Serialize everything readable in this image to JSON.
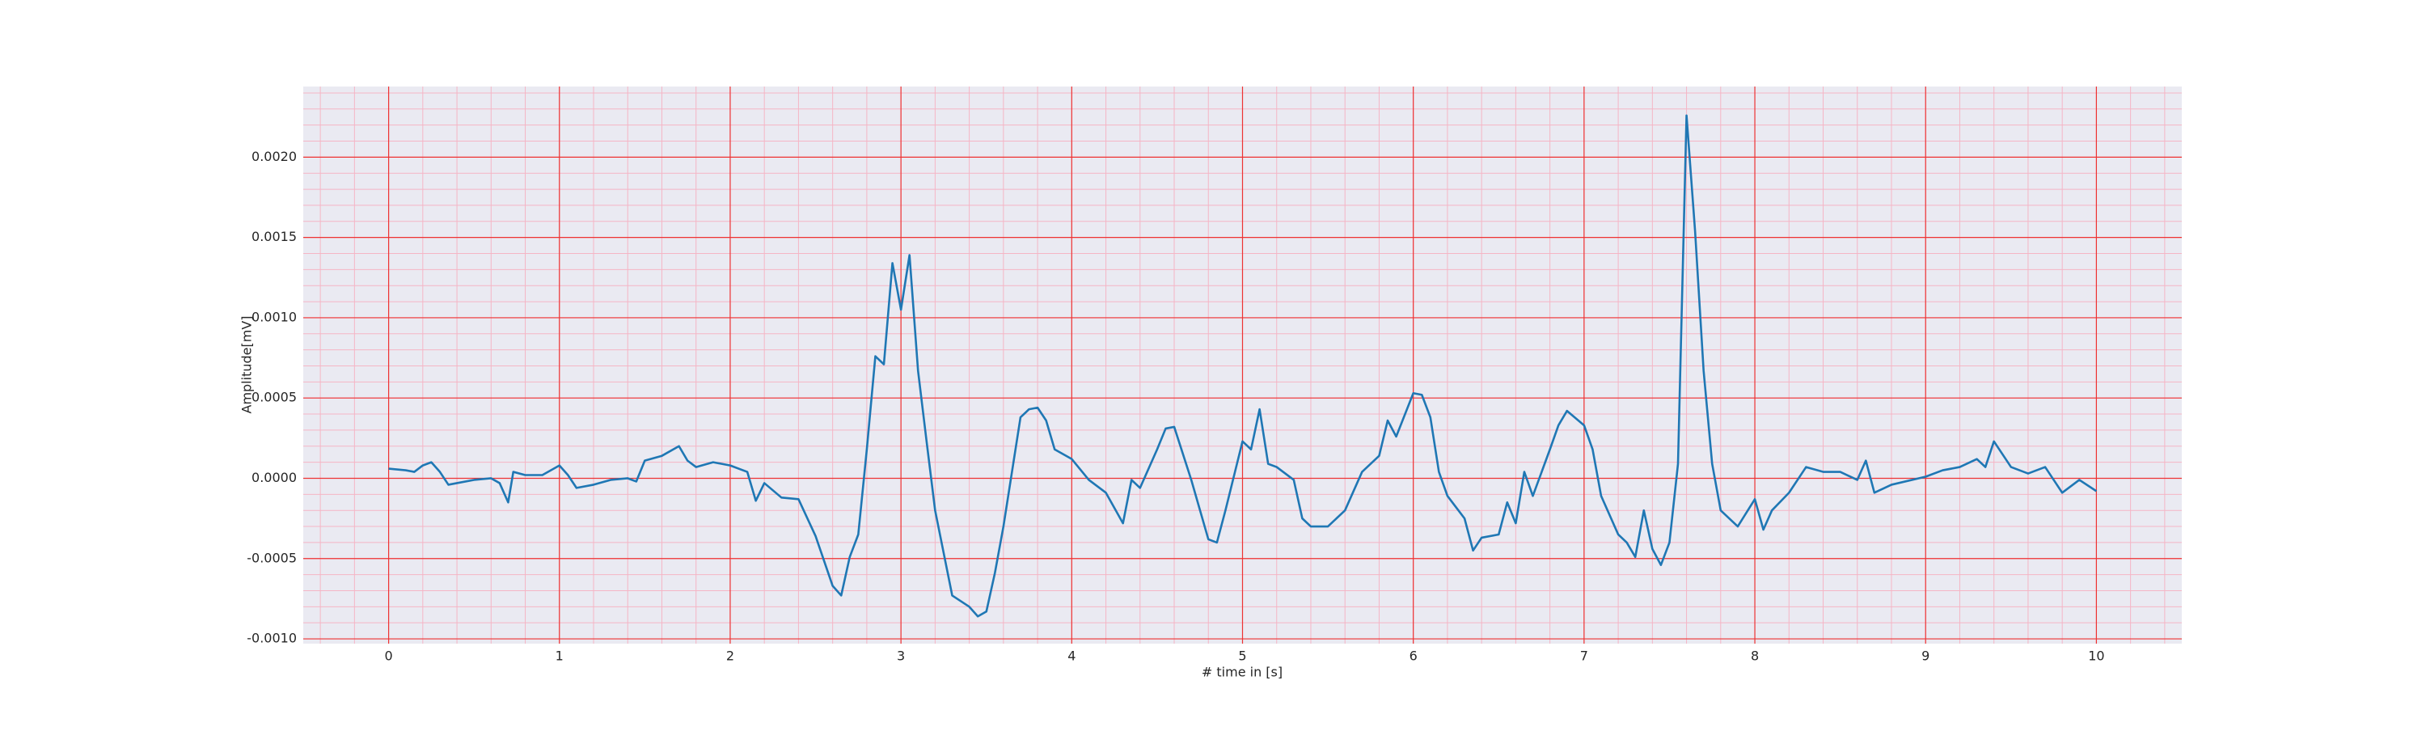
{
  "chart_data": {
    "type": "line",
    "xlabel": "# time in [s]",
    "ylabel": "Amplitude[mV]",
    "color": "#1f77b4",
    "background": "#eaeaf2",
    "grid": true,
    "grid_color": "#ee3333",
    "minor_grid": {
      "x_step": 0.2,
      "y_step": 0.0001,
      "color": "#f5b5c5"
    },
    "xlim": [
      -0.5,
      10.5
    ],
    "ylim": [
      -0.00103,
      0.00244
    ],
    "xticks": [
      0,
      1,
      2,
      3,
      4,
      5,
      6,
      7,
      8,
      9,
      10
    ],
    "yticks": [
      {
        "value": -0.001,
        "label": "-0.0010"
      },
      {
        "value": -0.0005,
        "label": "-0.0005"
      },
      {
        "value": 0,
        "label": "0.0000"
      },
      {
        "value": 0.0005,
        "label": "0.0005"
      },
      {
        "value": 0.001,
        "label": "0.0010"
      },
      {
        "value": 0.0015,
        "label": "0.0015"
      },
      {
        "value": 0.002,
        "label": "0.0020"
      }
    ],
    "x": [
      0,
      0.1,
      0.15,
      0.2,
      0.25,
      0.3,
      0.35,
      0.4,
      0.5,
      0.6,
      0.65,
      0.7,
      0.73,
      0.8,
      0.9,
      1.0,
      1.05,
      1.1,
      1.2,
      1.3,
      1.4,
      1.45,
      1.5,
      1.6,
      1.7,
      1.75,
      1.8,
      1.9,
      2.0,
      2.1,
      2.15,
      2.2,
      2.3,
      2.4,
      2.5,
      2.6,
      2.65,
      2.7,
      2.75,
      2.8,
      2.85,
      2.9,
      2.95,
      3.0,
      3.05,
      3.1,
      3.15,
      3.2,
      3.3,
      3.4,
      3.45,
      3.5,
      3.55,
      3.6,
      3.7,
      3.75,
      3.8,
      3.85,
      3.9,
      4.0,
      4.1,
      4.2,
      4.3,
      4.35,
      4.4,
      4.5,
      4.55,
      4.6,
      4.7,
      4.8,
      4.85,
      4.9,
      5.0,
      5.05,
      5.1,
      5.15,
      5.2,
      5.3,
      5.35,
      5.4,
      5.5,
      5.6,
      5.7,
      5.8,
      5.85,
      5.9,
      6.0,
      6.05,
      6.1,
      6.15,
      6.2,
      6.3,
      6.35,
      6.4,
      6.5,
      6.55,
      6.6,
      6.65,
      6.7,
      6.8,
      6.85,
      6.9,
      7.0,
      7.05,
      7.1,
      7.2,
      7.25,
      7.3,
      7.35,
      7.4,
      7.45,
      7.5,
      7.55,
      7.6,
      7.65,
      7.7,
      7.75,
      7.8,
      7.9,
      8.0,
      8.05,
      8.1,
      8.2,
      8.3,
      8.4,
      8.5,
      8.6,
      8.65,
      8.7,
      8.8,
      9.0,
      9.1,
      9.2,
      9.3,
      9.35,
      9.4,
      9.5,
      9.6,
      9.7,
      9.8,
      9.9,
      10.0
    ],
    "values": [
      6e-05,
      5e-05,
      4e-05,
      8e-05,
      0.0001,
      4e-05,
      -4e-05,
      -3e-05,
      -1e-05,
      0,
      -3e-05,
      -0.00015,
      4e-05,
      2e-05,
      2e-05,
      8e-05,
      2e-05,
      -6e-05,
      -4e-05,
      -1e-05,
      0,
      -2e-05,
      0.00011,
      0.00014,
      0.0002,
      0.00011,
      7e-05,
      0.0001,
      8e-05,
      4e-05,
      -0.00014,
      -3e-05,
      -0.00012,
      -0.00013,
      -0.00036,
      -0.00067,
      -0.00073,
      -0.00049,
      -0.00035,
      0.00018,
      0.00076,
      0.00071,
      0.00134,
      0.00105,
      0.00139,
      0.00067,
      0.00023,
      -0.0002,
      -0.00073,
      -0.0008,
      -0.00086,
      -0.00083,
      -0.00059,
      -0.0003,
      0.00038,
      0.00043,
      0.00044,
      0.00036,
      0.00018,
      0.00012,
      -1e-05,
      -9e-05,
      -0.00028,
      -1e-05,
      -6e-05,
      0.00018,
      0.00031,
      0.00032,
      -1e-05,
      -0.00038,
      -0.0004,
      -0.0002,
      0.00023,
      0.00018,
      0.00043,
      9e-05,
      7e-05,
      -1e-05,
      -0.00025,
      -0.0003,
      -0.0003,
      -0.0002,
      4e-05,
      0.00014,
      0.00036,
      0.00026,
      0.00053,
      0.00052,
      0.00038,
      4e-05,
      -0.00011,
      -0.00025,
      -0.00045,
      -0.00037,
      -0.00035,
      -0.00015,
      -0.00028,
      4e-05,
      -0.00011,
      0.00018,
      0.00033,
      0.00042,
      0.00033,
      0.00018,
      -0.00011,
      -0.00035,
      -0.0004,
      -0.00049,
      -0.0002,
      -0.00044,
      -0.00054,
      -0.0004,
      9e-05,
      0.00226,
      0.00154,
      0.00067,
      9e-05,
      -0.0002,
      -0.0003,
      -0.00013,
      -0.00032,
      -0.0002,
      -9e-05,
      7e-05,
      4e-05,
      4e-05,
      -1e-05,
      0.00011,
      -9e-05,
      -4e-05,
      1e-05,
      5e-05,
      7e-05,
      0.00012,
      7e-05,
      0.00023,
      7e-05,
      3e-05,
      7e-05,
      -9e-05,
      -1e-05,
      -8e-05
    ]
  }
}
